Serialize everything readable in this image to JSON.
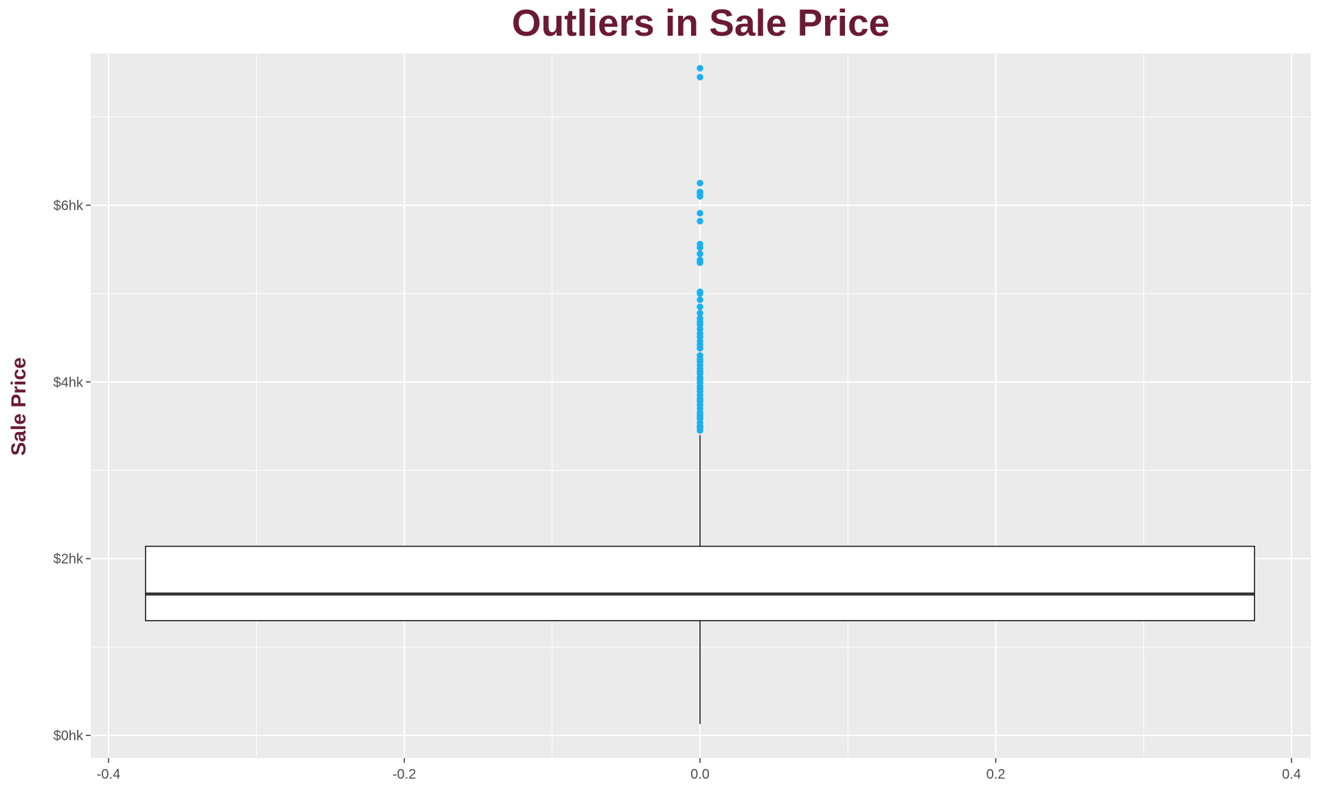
{
  "chart_data": {
    "type": "box",
    "title": "Outliers in Sale Price",
    "xlabel": "",
    "ylabel": "Sale Price",
    "xlim": [
      -0.4,
      0.4
    ],
    "ylim": [
      0,
      760000
    ],
    "x_ticks": [
      {
        "value": -0.4,
        "label": "-0.4"
      },
      {
        "value": -0.2,
        "label": "-0.2"
      },
      {
        "value": 0.0,
        "label": "0.0"
      },
      {
        "value": 0.2,
        "label": "0.2"
      },
      {
        "value": 0.4,
        "label": "0.4"
      }
    ],
    "y_ticks": [
      {
        "value": 0,
        "label": "$0hk"
      },
      {
        "value": 200000,
        "label": "$2hk"
      },
      {
        "value": 400000,
        "label": "$4hk"
      },
      {
        "value": 600000,
        "label": "$6hk"
      }
    ],
    "box": {
      "x": 0.0,
      "half_width": 0.375,
      "whisker_low": 13000,
      "q1": 129900,
      "median": 160000,
      "q3": 214000,
      "whisker_high": 340000
    },
    "outliers": [
      345000,
      348000,
      350000,
      354000,
      358000,
      360000,
      363000,
      366000,
      370000,
      374000,
      378000,
      381000,
      385000,
      389000,
      392000,
      395000,
      399000,
      402000,
      405000,
      409000,
      412000,
      415000,
      419000,
      423000,
      426000,
      430000,
      438000,
      442000,
      446000,
      451000,
      455000,
      460000,
      465000,
      468000,
      472000,
      478000,
      485000,
      493000,
      500000,
      502000,
      535000,
      538000,
      545000,
      552000,
      556000,
      582000,
      591000,
      610000,
      613000,
      615000,
      625000,
      745000,
      755000
    ],
    "grid": true,
    "legend": "none",
    "colors": {
      "title": "#6b1a33",
      "ylabel": "#6b1a33",
      "panel_background": "#ebebeb",
      "grid": "#ffffff",
      "outlier": "#1ab0f0",
      "box_fill": "#ffffff",
      "box_line": "#1a1a1a",
      "median_line": "#333333",
      "tick_label": "#4d4d4d",
      "tick": "#333333"
    }
  }
}
